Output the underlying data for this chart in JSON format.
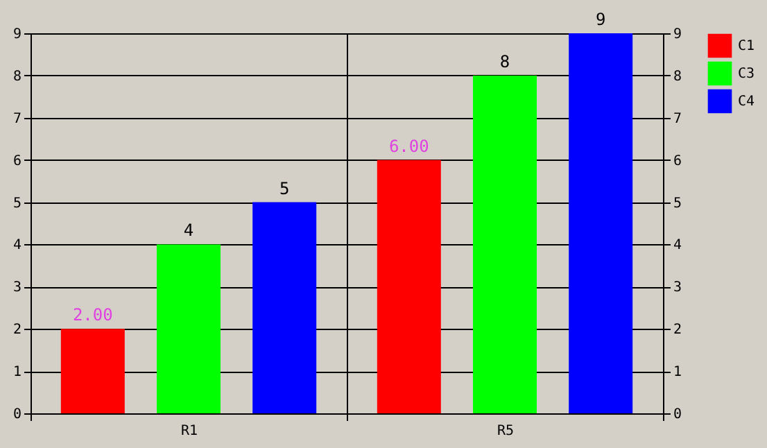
{
  "chart_data": {
    "type": "bar",
    "categories": [
      "R1",
      "R5"
    ],
    "series": [
      {
        "name": "C1",
        "color": "#ff0000",
        "values": [
          2,
          6
        ],
        "value_labels": [
          "2.00",
          "6.00"
        ]
      },
      {
        "name": "C3",
        "color": "#00ff00",
        "values": [
          4,
          8
        ],
        "value_labels": [
          "4",
          "8"
        ]
      },
      {
        "name": "C4",
        "color": "#0000ff",
        "values": [
          5,
          9
        ],
        "value_labels": [
          "5",
          "9"
        ]
      }
    ],
    "ylim": [
      0,
      9
    ],
    "yticks": [
      0,
      1,
      2,
      3,
      4,
      5,
      6,
      7,
      8,
      9
    ],
    "y2lim": [
      0,
      9
    ],
    "y2ticks": [
      0,
      1,
      2,
      3,
      4,
      5,
      6,
      7,
      8,
      9
    ],
    "grid": "y",
    "legend": "right"
  }
}
